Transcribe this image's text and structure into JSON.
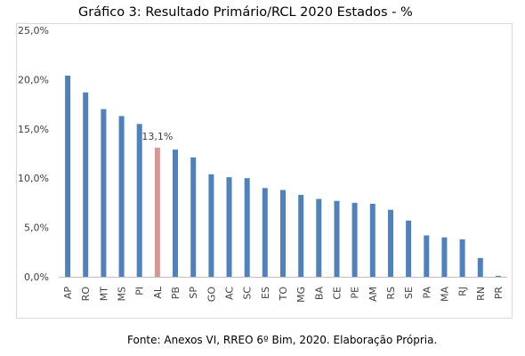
{
  "chart_data": {
    "type": "bar",
    "title": "Gráfico 3: Resultado Primário/RCL 2020 Estados - %",
    "categories": [
      "AP",
      "RO",
      "MT",
      "MS",
      "PI",
      "AL",
      "PB",
      "SP",
      "GO",
      "AC",
      "SC",
      "ES",
      "TO",
      "MG",
      "BA",
      "CE",
      "PE",
      "AM",
      "RS",
      "SE",
      "PA",
      "MA",
      "RJ",
      "RN",
      "PR"
    ],
    "values": [
      20.4,
      18.7,
      17.0,
      16.3,
      15.5,
      13.1,
      12.9,
      12.1,
      10.4,
      10.1,
      10.0,
      9.0,
      8.8,
      8.3,
      7.9,
      7.7,
      7.5,
      7.4,
      6.8,
      5.7,
      4.2,
      4.0,
      3.8,
      1.9,
      0.1
    ],
    "highlight": {
      "category": "AL",
      "label": "13,1%"
    },
    "yticks": [
      "0,0%",
      "5,0%",
      "10,0%",
      "15,0%",
      "20,0%",
      "25,0%"
    ],
    "ylim": [
      0,
      25
    ],
    "xlabel": "",
    "ylabel": "",
    "grid": false,
    "colors": {
      "bar": "#4f81bd",
      "highlight": "#d99694",
      "axis": "#bfbfbf",
      "text": "#404040"
    }
  },
  "source_text": "Fonte: Anexos VI, RREO 6º Bim, 2020. Elaboração Própria."
}
